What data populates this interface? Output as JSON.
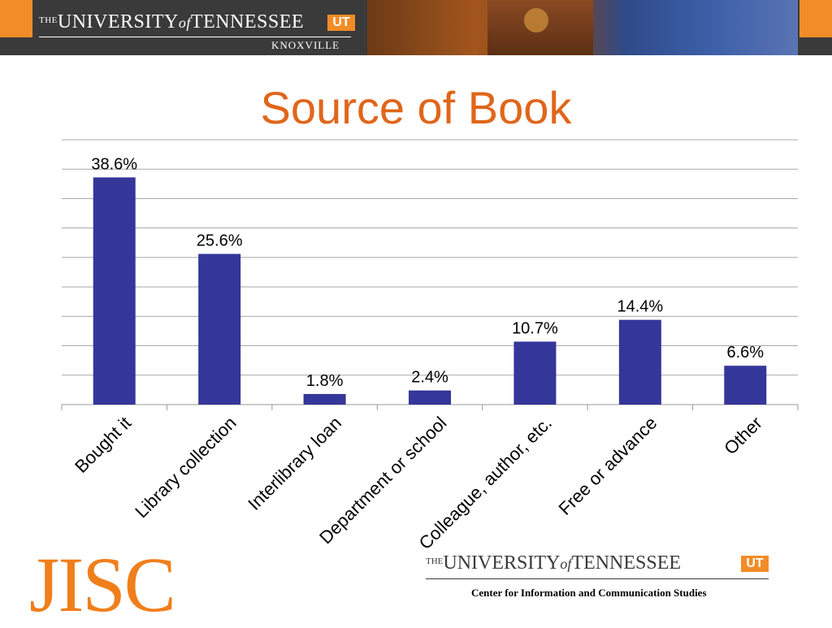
{
  "header": {
    "the": "THE",
    "university": "UNIVERSITY",
    "of": "of",
    "tennessee": "TENNESSEE",
    "badge": "UT",
    "campus": "KNOXVILLE"
  },
  "slide": {
    "title": "Source of Book"
  },
  "chart_data": {
    "type": "bar",
    "title": "Source of Book",
    "categories": [
      "Bought it",
      "Library collection",
      "Interlibrary loan",
      "Department or school",
      "Colleague, author, etc.",
      "Free or advance",
      "Other"
    ],
    "values": [
      38.6,
      25.6,
      1.8,
      2.4,
      10.7,
      14.4,
      6.6
    ],
    "data_labels": [
      "38.6%",
      "25.6%",
      "1.8%",
      "2.4%",
      "10.7%",
      "14.4%",
      "6.6%"
    ],
    "ylim": [
      0,
      45
    ],
    "grid": true,
    "legend": "none",
    "bar_color": "#34369a"
  },
  "footer": {
    "jisc": "JISC",
    "the": "THE",
    "university": "UNIVERSITY",
    "of": "of",
    "tennessee": "TENNESSEE",
    "badge": "UT",
    "center": "Center for Information and Communication Studies"
  }
}
